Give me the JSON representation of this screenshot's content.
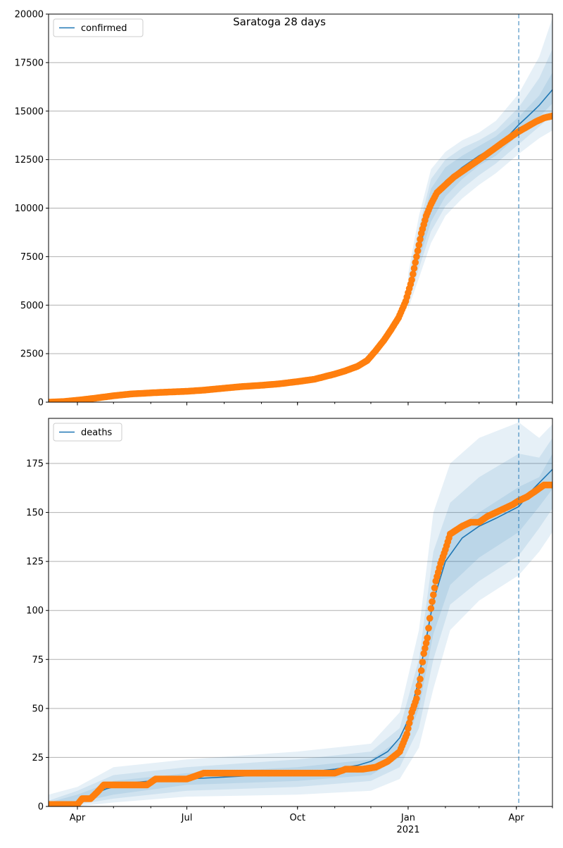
{
  "figure": {
    "title": "Saratoga 28 days",
    "forecast_marker_date": "2021-04-03"
  },
  "colors": {
    "model_line": "#1f77b4",
    "band": "#1f77b4",
    "observed": "#ff7f0e",
    "grid": "#b0b0b0",
    "forecast_line": "#1f77b4"
  },
  "x_axis": {
    "start": "2020-03-08",
    "end": "2021-05-01",
    "tick_labels": [
      {
        "date": "2020-04-01",
        "label": "Apr"
      },
      {
        "date": "2020-07-01",
        "label": "Jul"
      },
      {
        "date": "2020-10-01",
        "label": "Oct"
      },
      {
        "date": "2021-01-01",
        "label": "Jan"
      },
      {
        "date": "2021-04-01",
        "label": "Apr"
      }
    ],
    "year_label": {
      "date": "2021-01-01",
      "label": "2021"
    }
  },
  "chart_data": [
    {
      "type": "line",
      "title": "Saratoga 28 days",
      "legend": {
        "label": "confirmed",
        "placement": "top-left"
      },
      "ylim": [
        0,
        20000
      ],
      "y_ticks": [
        0,
        2500,
        5000,
        7500,
        10000,
        12500,
        15000,
        17500,
        20000
      ],
      "grid": "y",
      "model_series": {
        "name": "confirmed",
        "x": [
          "2020-03-08",
          "2020-04-01",
          "2020-05-01",
          "2020-06-01",
          "2020-07-01",
          "2020-08-01",
          "2020-09-01",
          "2020-10-01",
          "2020-11-01",
          "2020-11-20",
          "2020-12-01",
          "2020-12-15",
          "2020-12-25",
          "2021-01-01",
          "2021-01-08",
          "2021-01-15",
          "2021-01-22",
          "2021-02-01",
          "2021-02-15",
          "2021-03-01",
          "2021-03-15",
          "2021-03-25",
          "2021-04-03",
          "2021-04-10",
          "2021-04-20",
          "2021-05-01"
        ],
        "y": [
          0,
          100,
          380,
          500,
          560,
          720,
          880,
          1080,
          1500,
          1950,
          2400,
          3500,
          4600,
          5600,
          7300,
          9000,
          10400,
          11400,
          12100,
          12700,
          13200,
          13700,
          14300,
          14700,
          15300,
          16100
        ]
      },
      "bands": [
        {
          "x": [
            "2021-01-01",
            "2021-01-10",
            "2021-01-20",
            "2021-02-01",
            "2021-02-15",
            "2021-03-01",
            "2021-03-15",
            "2021-04-03",
            "2021-04-20",
            "2021-05-01"
          ],
          "low": [
            4800,
            6400,
            8200,
            9600,
            10500,
            11200,
            11800,
            12800,
            13600,
            14000
          ],
          "high": [
            6600,
            9600,
            12000,
            12900,
            13500,
            13900,
            14500,
            15900,
            17800,
            19800
          ]
        },
        {
          "x": [
            "2021-01-01",
            "2021-01-10",
            "2021-01-20",
            "2021-02-01",
            "2021-02-15",
            "2021-03-01",
            "2021-03-15",
            "2021-04-03",
            "2021-04-20",
            "2021-05-01"
          ],
          "low": [
            5100,
            6900,
            8800,
            10100,
            11000,
            11700,
            12300,
            13300,
            14200,
            14800
          ],
          "high": [
            6200,
            9000,
            11500,
            12500,
            13100,
            13500,
            14000,
            15200,
            16700,
            18200
          ]
        },
        {
          "x": [
            "2021-01-01",
            "2021-01-10",
            "2021-01-20",
            "2021-02-01",
            "2021-02-15",
            "2021-03-01",
            "2021-03-15",
            "2021-04-03",
            "2021-04-20",
            "2021-05-01"
          ],
          "low": [
            5300,
            7300,
            9300,
            10600,
            11500,
            12200,
            12700,
            13800,
            14700,
            15400
          ],
          "high": [
            5900,
            8500,
            11000,
            12100,
            12700,
            13200,
            13700,
            14700,
            15800,
            17000
          ]
        }
      ],
      "observed": {
        "x": [
          "2020-03-08",
          "2020-03-20",
          "2020-04-01",
          "2020-04-15",
          "2020-05-01",
          "2020-05-15",
          "2020-06-01",
          "2020-06-15",
          "2020-07-01",
          "2020-07-15",
          "2020-08-01",
          "2020-08-15",
          "2020-09-01",
          "2020-09-15",
          "2020-10-01",
          "2020-10-15",
          "2020-11-01",
          "2020-11-10",
          "2020-11-20",
          "2020-11-28",
          "2020-12-05",
          "2020-12-12",
          "2020-12-18",
          "2020-12-24",
          "2020-12-30",
          "2021-01-04",
          "2021-01-08",
          "2021-01-12",
          "2021-01-16",
          "2021-01-20",
          "2021-01-25",
          "2021-02-01",
          "2021-02-08",
          "2021-02-15",
          "2021-02-22",
          "2021-03-01",
          "2021-03-10",
          "2021-03-20",
          "2021-03-28",
          "2021-04-03",
          "2021-04-10",
          "2021-04-17",
          "2021-04-24",
          "2021-05-01"
        ],
        "y": [
          0,
          30,
          100,
          200,
          330,
          420,
          480,
          520,
          560,
          620,
          720,
          800,
          870,
          940,
          1060,
          1180,
          1450,
          1620,
          1850,
          2150,
          2650,
          3200,
          3750,
          4350,
          5200,
          6300,
          7500,
          8700,
          9600,
          10200,
          10800,
          11200,
          11600,
          11900,
          12200,
          12500,
          12900,
          13350,
          13700,
          13950,
          14200,
          14450,
          14650,
          14750
        ]
      }
    },
    {
      "type": "line",
      "legend": {
        "label": "deaths",
        "placement": "top-left"
      },
      "ylim": [
        0,
        198
      ],
      "y_ticks": [
        0,
        25,
        50,
        75,
        100,
        125,
        150,
        175
      ],
      "grid": "y",
      "model_series": {
        "name": "deaths",
        "x": [
          "2020-03-08",
          "2020-03-25",
          "2020-04-10",
          "2020-04-25",
          "2020-05-15",
          "2020-06-01",
          "2020-07-01",
          "2020-08-01",
          "2020-09-01",
          "2020-10-01",
          "2020-11-01",
          "2020-11-20",
          "2020-12-01",
          "2020-12-15",
          "2020-12-25",
          "2021-01-01",
          "2021-01-08",
          "2021-01-15",
          "2021-01-22",
          "2021-02-01",
          "2021-02-15",
          "2021-03-01",
          "2021-03-15",
          "2021-04-03",
          "2021-04-15",
          "2021-05-01"
        ],
        "y": [
          0,
          1,
          5,
          9,
          12,
          13,
          14,
          15,
          16,
          17,
          19,
          21,
          23,
          28,
          35,
          44,
          60,
          82,
          105,
          125,
          137,
          143,
          147,
          153,
          162,
          172
        ]
      },
      "bands": [
        {
          "x": [
            "2020-03-08",
            "2020-04-01",
            "2020-05-01",
            "2020-07-01",
            "2020-10-01",
            "2020-12-01",
            "2020-12-25",
            "2021-01-10",
            "2021-01-22",
            "2021-02-05",
            "2021-03-01",
            "2021-04-03",
            "2021-04-20",
            "2021-05-01"
          ],
          "low": [
            0,
            0,
            2,
            5,
            6,
            8,
            14,
            30,
            60,
            90,
            105,
            118,
            130,
            140
          ],
          "high": [
            6,
            10,
            20,
            24,
            28,
            32,
            48,
            90,
            150,
            175,
            188,
            196,
            188,
            195
          ]
        },
        {
          "x": [
            "2020-03-08",
            "2020-04-01",
            "2020-05-01",
            "2020-07-01",
            "2020-10-01",
            "2020-12-01",
            "2020-12-25",
            "2021-01-10",
            "2021-01-22",
            "2021-02-05",
            "2021-03-01",
            "2021-04-03",
            "2021-04-20",
            "2021-05-01"
          ],
          "low": [
            0,
            1,
            4,
            8,
            10,
            13,
            20,
            40,
            75,
            103,
            115,
            128,
            142,
            152
          ],
          "high": [
            3,
            8,
            16,
            20,
            24,
            28,
            40,
            75,
            130,
            155,
            168,
            180,
            178,
            188
          ]
        },
        {
          "x": [
            "2020-03-08",
            "2020-04-01",
            "2020-05-01",
            "2020-07-01",
            "2020-10-01",
            "2020-12-01",
            "2020-12-25",
            "2021-01-10",
            "2021-01-22",
            "2021-02-05",
            "2021-03-01",
            "2021-04-03",
            "2021-04-20",
            "2021-05-01"
          ],
          "low": [
            0,
            2,
            6,
            11,
            13,
            16,
            25,
            50,
            88,
            113,
            127,
            140,
            153,
            162
          ],
          "high": [
            2,
            6,
            13,
            17,
            20,
            24,
            34,
            62,
            115,
            140,
            150,
            163,
            168,
            180
          ]
        }
      ],
      "observed": {
        "x": [
          "2020-03-08",
          "2020-03-28",
          "2020-04-01",
          "2020-04-05",
          "2020-04-12",
          "2020-04-17",
          "2020-04-23",
          "2020-05-01",
          "2020-05-15",
          "2020-05-29",
          "2020-06-05",
          "2020-06-20",
          "2020-07-01",
          "2020-07-15",
          "2020-08-01",
          "2020-09-01",
          "2020-10-01",
          "2020-11-01",
          "2020-11-10",
          "2020-11-24",
          "2020-12-05",
          "2020-12-15",
          "2020-12-25",
          "2020-12-31",
          "2021-01-04",
          "2021-01-08",
          "2021-01-11",
          "2021-01-14",
          "2021-01-17",
          "2021-01-20",
          "2021-01-24",
          "2021-01-28",
          "2021-02-01",
          "2021-02-05",
          "2021-02-10",
          "2021-02-15",
          "2021-02-22",
          "2021-03-01",
          "2021-03-08",
          "2021-03-15",
          "2021-03-22",
          "2021-03-29",
          "2021-04-03",
          "2021-04-10",
          "2021-04-17",
          "2021-04-24",
          "2021-05-01"
        ],
        "y": [
          1,
          1,
          1,
          4,
          4,
          7,
          11,
          11,
          11,
          11,
          14,
          14,
          14,
          17,
          17,
          17,
          17,
          17,
          19,
          19,
          20,
          23,
          28,
          37,
          48,
          55,
          65,
          78,
          86,
          101,
          115,
          124,
          131,
          139,
          141,
          143,
          145,
          145,
          148,
          150,
          152,
          154,
          156,
          158,
          161,
          164,
          164
        ]
      }
    }
  ]
}
